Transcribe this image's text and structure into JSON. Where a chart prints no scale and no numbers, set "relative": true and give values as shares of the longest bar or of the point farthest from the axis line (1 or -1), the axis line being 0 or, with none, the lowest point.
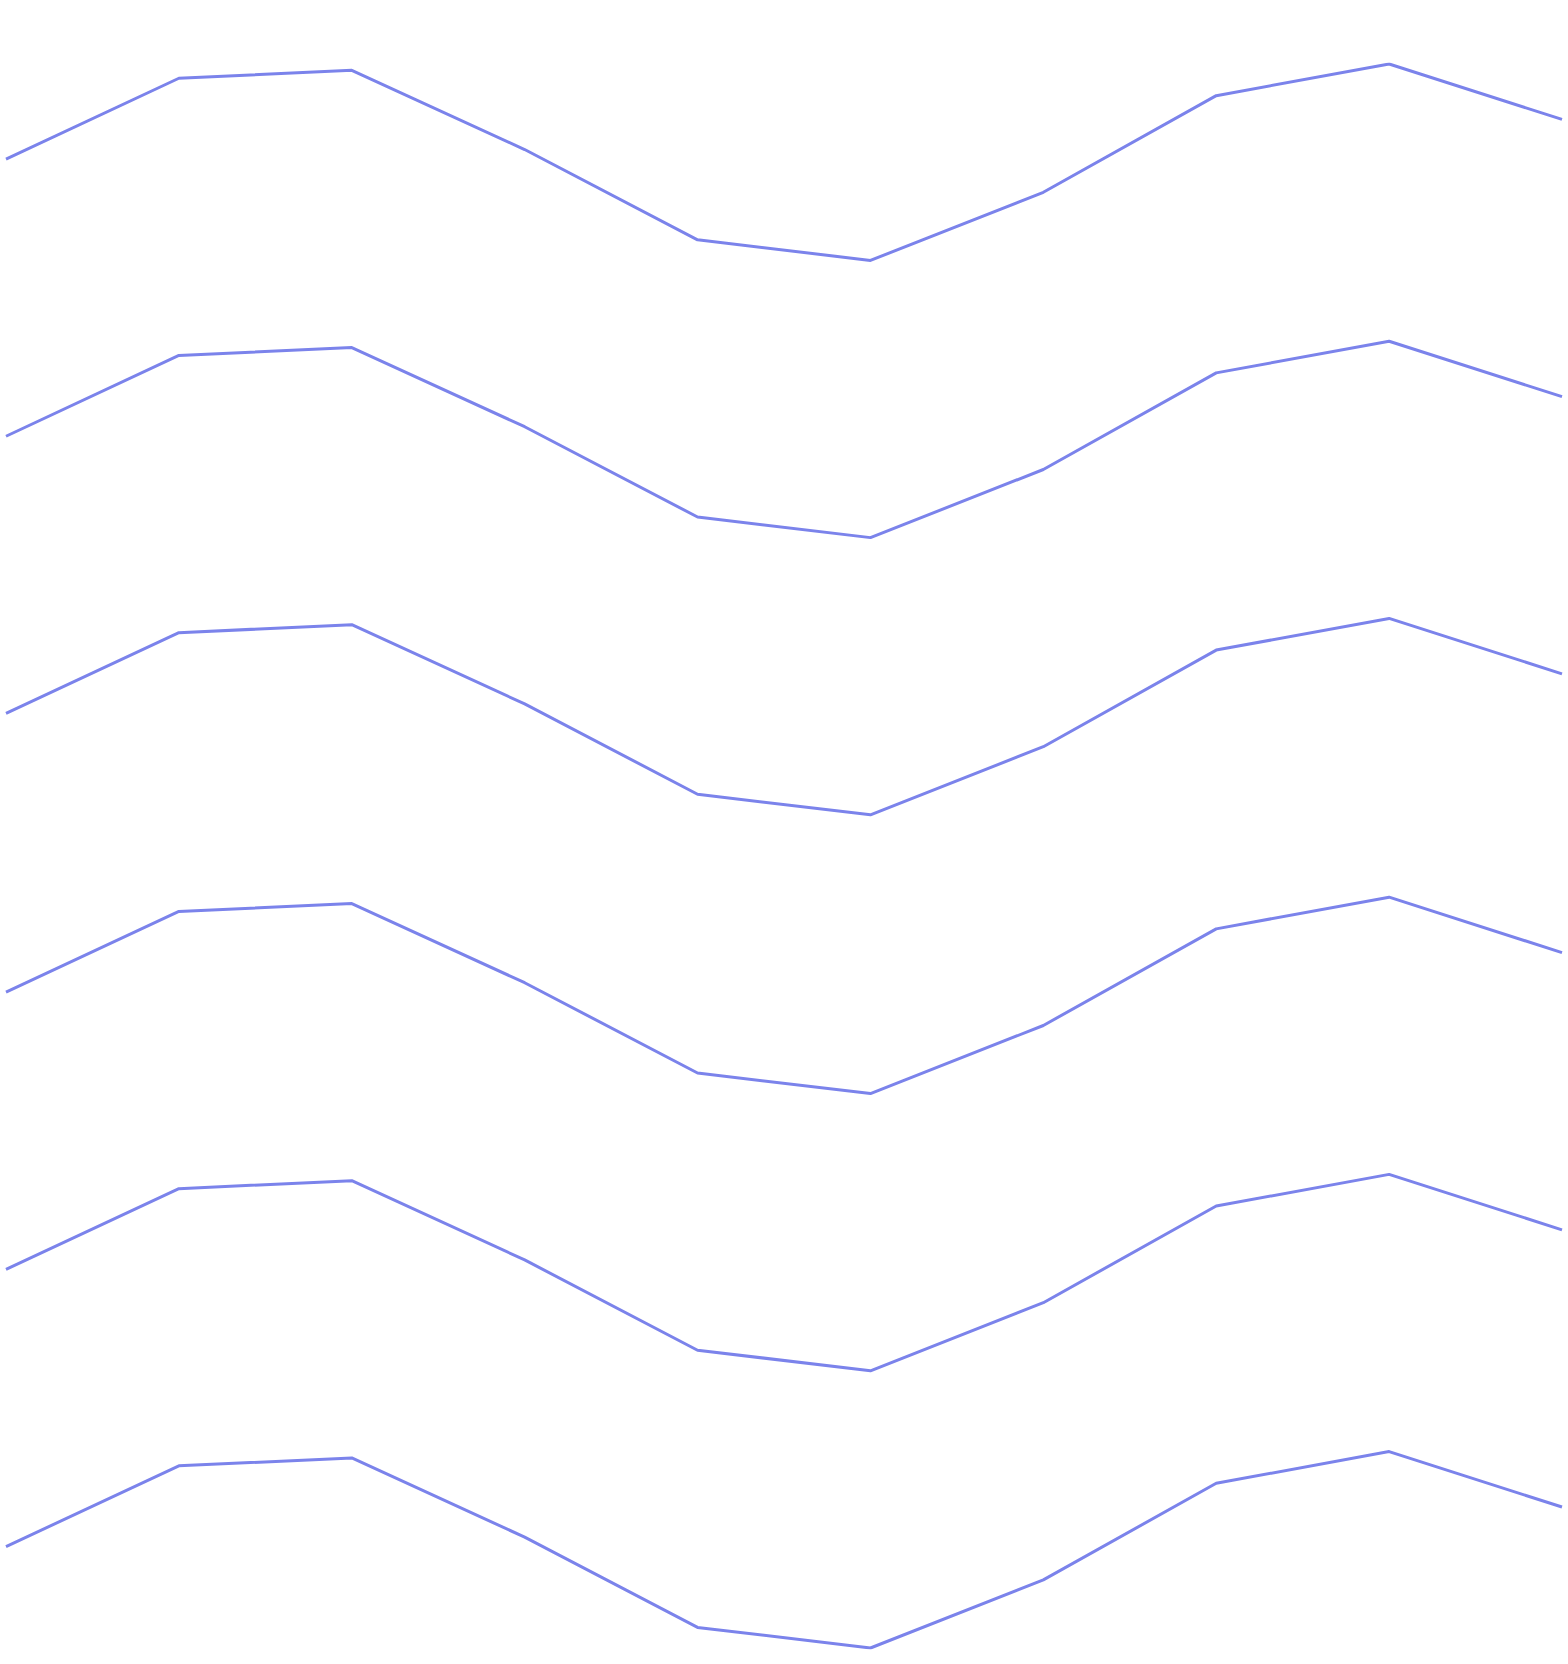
{
  "chart_data": {
    "type": "line",
    "relative": true,
    "categories": [
      null,
      null,
      null,
      null,
      null,
      null,
      null,
      null,
      null,
      null
    ],
    "grid": false,
    "line_style": "solid",
    "marker": "none",
    "series": [
      {
        "color": "#7b83eb",
        "values": [
          0.94,
          0.991,
          0.996,
          0.946,
          0.889,
          0.876,
          0.919,
          0.98,
          1.0,
          0.965
        ]
      },
      {
        "color": "#7b83eb",
        "values": [
          0.765,
          0.816,
          0.821,
          0.771,
          0.714,
          0.701,
          0.744,
          0.805,
          0.825,
          0.79
        ]
      },
      {
        "color": "#7b83eb",
        "values": [
          0.59,
          0.641,
          0.646,
          0.596,
          0.539,
          0.526,
          0.569,
          0.63,
          0.65,
          0.615
        ]
      },
      {
        "color": "#7b83eb",
        "values": [
          0.414,
          0.465,
          0.47,
          0.42,
          0.363,
          0.35,
          0.393,
          0.454,
          0.474,
          0.439
        ]
      },
      {
        "color": "#7b83eb",
        "values": [
          0.239,
          0.29,
          0.295,
          0.245,
          0.188,
          0.175,
          0.218,
          0.279,
          0.299,
          0.264
        ]
      },
      {
        "color": "#7b83eb",
        "values": [
          0.064,
          0.115,
          0.12,
          0.07,
          0.013,
          0.0,
          0.043,
          0.104,
          0.124,
          0.089
        ]
      }
    ]
  }
}
